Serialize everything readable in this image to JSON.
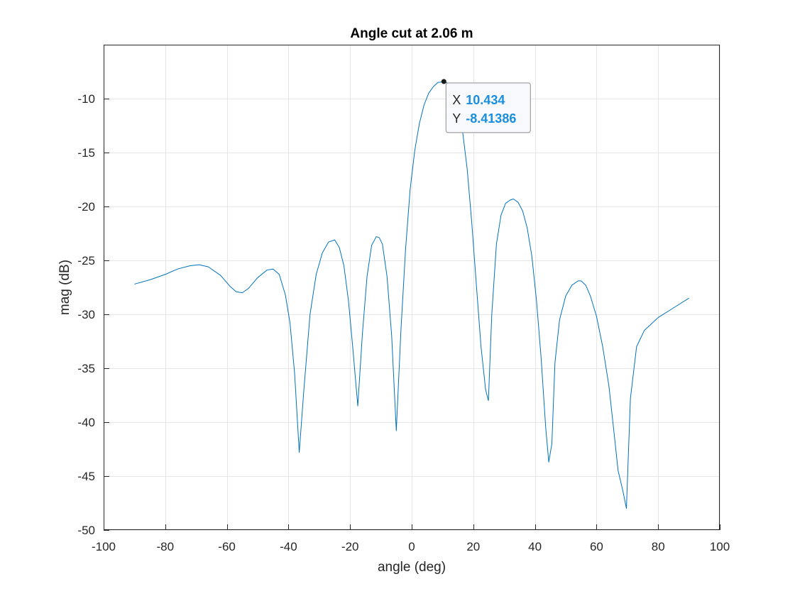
{
  "colors": {
    "line": "#0072bd",
    "grid": "#e6e6e6",
    "axis": "#262626",
    "tip_value": "#1a8fe0",
    "tip_bg": "#f7f9fc",
    "tip_border": "#8c8c8c",
    "marker": "#1a1a1a"
  },
  "chart_data": {
    "type": "line",
    "title": "Angle cut at 2.06 m",
    "xlabel": "angle (deg)",
    "ylabel": "mag (dB)",
    "xlim": [
      -100,
      100
    ],
    "ylim": [
      -50,
      -5
    ],
    "xticks": [
      -100,
      -80,
      -60,
      -40,
      -20,
      0,
      20,
      40,
      60,
      80,
      100
    ],
    "yticks": [
      -10,
      -15,
      -20,
      -25,
      -30,
      -35,
      -40,
      -45,
      -50
    ],
    "xtick_labels": [
      "-100",
      "-80",
      "-60",
      "-40",
      "-20",
      "0",
      "20",
      "40",
      "60",
      "80",
      "100"
    ],
    "ytick_labels": [
      "-10",
      "-15",
      "-20",
      "-25",
      "-30",
      "-35",
      "-40",
      "-45",
      "-50"
    ],
    "grid": true,
    "series": [
      {
        "x": [
          -90,
          -85,
          -80,
          -76,
          -72,
          -69,
          -66,
          -62,
          -59,
          -57,
          -55,
          -53,
          -50,
          -47,
          -45,
          -43,
          -41,
          -39.5,
          -38,
          -36.5,
          -35,
          -33,
          -31,
          -29,
          -27,
          -25,
          -23.5,
          -22,
          -20.5,
          -19,
          -17.5,
          -16,
          -14.5,
          -13,
          -11.5,
          -10.5,
          -9.5,
          -8,
          -6.5,
          -5,
          -3.5,
          -2,
          -0.5,
          1,
          2.5,
          4,
          5.5,
          7,
          8.5,
          10.434,
          12,
          13.5,
          15,
          16.5,
          18,
          19.5,
          21,
          22.5,
          24,
          24.9,
          26,
          27.5,
          29,
          30.5,
          32,
          33,
          34.5,
          36,
          37.5,
          39,
          40.5,
          42,
          43.5,
          44.5,
          45.5,
          46.5,
          48,
          50,
          52,
          54,
          55,
          56.5,
          58,
          60,
          62,
          64,
          65.5,
          67,
          68.5,
          69.7,
          71,
          73,
          75.5,
          80,
          85,
          90
        ],
        "y": [
          -27.2,
          -26.8,
          -26.3,
          -25.8,
          -25.5,
          -25.4,
          -25.6,
          -26.4,
          -27.4,
          -27.9,
          -28.0,
          -27.6,
          -26.6,
          -25.9,
          -25.8,
          -26.3,
          -28.2,
          -30.8,
          -35.5,
          -42.8,
          -37.0,
          -30.0,
          -26.3,
          -24.3,
          -23.3,
          -23.1,
          -23.8,
          -25.5,
          -28.8,
          -33.5,
          -38.5,
          -31.8,
          -26.5,
          -23.6,
          -22.8,
          -22.9,
          -23.5,
          -26.5,
          -32.0,
          -40.8,
          -31.5,
          -24.0,
          -18.4,
          -14.8,
          -12.3,
          -10.6,
          -9.5,
          -8.9,
          -8.5,
          -8.41386,
          -8.6,
          -9.3,
          -10.6,
          -13.0,
          -16.5,
          -21.5,
          -27.3,
          -33.0,
          -37.0,
          -38.0,
          -30.0,
          -23.5,
          -20.8,
          -19.7,
          -19.4,
          -19.3,
          -19.6,
          -20.4,
          -22.0,
          -24.6,
          -28.7,
          -34.0,
          -40.5,
          -43.7,
          -42.0,
          -34.5,
          -30.5,
          -28.3,
          -27.3,
          -26.9,
          -26.9,
          -27.3,
          -28.3,
          -30.2,
          -33.0,
          -36.6,
          -40.5,
          -44.5,
          -46.3,
          -48.0,
          -37.8,
          -33.0,
          -31.5,
          -30.3,
          -29.4,
          -28.5
        ]
      }
    ],
    "datatip": {
      "x": 10.434,
      "y": -8.41386,
      "x_label": "X",
      "y_label": "Y",
      "x_text": "10.434",
      "y_text": "-8.41386"
    }
  }
}
